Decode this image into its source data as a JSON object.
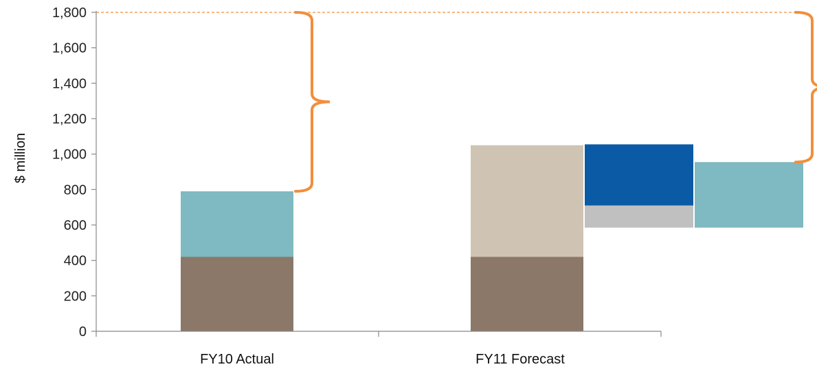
{
  "chart_data": {
    "type": "bar",
    "subtype": "stacked-waterfall",
    "title": "",
    "xlabel": "",
    "ylabel": "$ million",
    "ylim": [
      0,
      1800
    ],
    "yticks": [
      0,
      200,
      400,
      600,
      800,
      1000,
      1200,
      1400,
      1600,
      1800
    ],
    "ytick_labels": [
      "0",
      "200",
      "400",
      "600",
      "800",
      "1,000",
      "1,200",
      "1,400",
      "1,600",
      "1,800"
    ],
    "categories": [
      "FY10 Actual",
      "FY11 Forecast"
    ],
    "grid": false,
    "legend": "none",
    "reference_line": {
      "y": 1800,
      "style": "dashed",
      "color": "#f28e3c"
    },
    "segments": [
      {
        "category": "FY10 Actual",
        "slot": 0,
        "bottom": 0,
        "top": 420,
        "color": "#8b7869"
      },
      {
        "category": "FY10 Actual",
        "slot": 0,
        "bottom": 420,
        "top": 790,
        "color": "#7fb9c1"
      },
      {
        "category": "FY11 Forecast",
        "slot": 0,
        "bottom": 0,
        "top": 420,
        "color": "#8b7869"
      },
      {
        "category": "FY11 Forecast",
        "slot": 0,
        "bottom": 420,
        "top": 1050,
        "color": "#cfc4b3"
      },
      {
        "category": "FY11 Forecast",
        "slot": 1,
        "bottom": 585,
        "top": 710,
        "color": "#c0c0c0"
      },
      {
        "category": "FY11 Forecast",
        "slot": 1,
        "bottom": 710,
        "top": 1055,
        "color": "#0b5aa5"
      },
      {
        "category": "FY11 Forecast",
        "slot": 2,
        "bottom": 585,
        "top": 955,
        "color": "#7fb9c1"
      }
    ],
    "brackets": [
      {
        "from": 790,
        "to": 1800,
        "color": "#f28e3c"
      },
      {
        "from": 955,
        "to": 1800,
        "color": "#f28e3c"
      }
    ]
  }
}
